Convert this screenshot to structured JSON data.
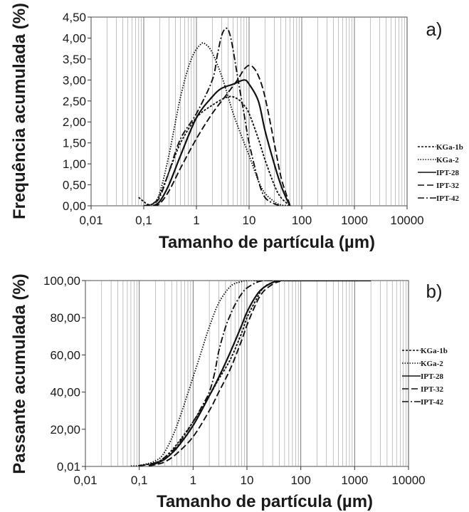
{
  "chart_data": [
    {
      "type": "line",
      "panel_label": "a)",
      "xlabel": "Tamanho de partícula (µm)",
      "ylabel": "Frequência acumulada (%)",
      "x_scale": "log",
      "xlim": [
        0.01,
        10000
      ],
      "ylim": [
        0,
        4.5
      ],
      "x_ticks": [
        "0,01",
        "0,1",
        "1",
        "10",
        "100",
        "1000",
        "10000"
      ],
      "y_ticks": [
        "0,00",
        "0,50",
        "1,00",
        "1,50",
        "2,00",
        "2,50",
        "3,00",
        "3,50",
        "4,00",
        "4,50"
      ],
      "grid": "log vertical grid",
      "legend_position": "right",
      "series": [
        {
          "name": "KGa-1b",
          "dash": "3,2",
          "x": [
            0.08,
            0.1,
            0.12,
            0.15,
            0.2,
            0.3,
            0.5,
            1,
            2,
            4,
            6,
            8,
            10,
            15,
            20,
            30,
            40,
            60
          ],
          "y": [
            0.2,
            0.1,
            0.03,
            0.05,
            0.25,
            0.8,
            1.5,
            2.1,
            2.4,
            2.6,
            2.55,
            2.4,
            2.2,
            1.6,
            1.1,
            0.5,
            0.2,
            0.0
          ]
        },
        {
          "name": "KGa-2",
          "dash": "1.5,2",
          "x": [
            0.1,
            0.15,
            0.2,
            0.3,
            0.5,
            0.8,
            1.2,
            1.5,
            2,
            3,
            4,
            5,
            7,
            10,
            15,
            20,
            30,
            40,
            60
          ],
          "y": [
            0.0,
            0.05,
            0.3,
            1.2,
            2.6,
            3.5,
            3.85,
            3.85,
            3.65,
            3.1,
            2.6,
            2.2,
            1.7,
            1.2,
            0.6,
            0.3,
            0.1,
            0.02,
            0.0
          ]
        },
        {
          "name": "IPT-28",
          "dash": "",
          "x": [
            0.15,
            0.2,
            0.3,
            0.5,
            1,
            2,
            3,
            5,
            8,
            10,
            15,
            20,
            30,
            40,
            50,
            60
          ],
          "y": [
            0.0,
            0.1,
            0.5,
            1.2,
            2.1,
            2.6,
            2.8,
            2.9,
            3.0,
            2.9,
            2.5,
            1.8,
            1.0,
            0.5,
            0.2,
            0.0
          ]
        },
        {
          "name": "IPT-32",
          "dash": "9,4",
          "x": [
            0.15,
            0.2,
            0.3,
            0.5,
            1,
            2,
            4,
            6,
            8,
            10,
            12,
            15,
            20,
            30,
            40,
            50,
            60
          ],
          "y": [
            0.0,
            0.05,
            0.35,
            0.9,
            1.6,
            2.2,
            2.7,
            3.0,
            3.25,
            3.35,
            3.3,
            3.1,
            2.6,
            1.5,
            0.7,
            0.3,
            0.0
          ]
        },
        {
          "name": "IPT-42",
          "dash": "9,3,2,3",
          "x": [
            0.1,
            0.15,
            0.2,
            0.3,
            0.5,
            1,
            2,
            2.5,
            3,
            3.5,
            4,
            4.5,
            5,
            6,
            8,
            10,
            15,
            20,
            30,
            40
          ],
          "y": [
            0.0,
            0.05,
            0.2,
            0.8,
            1.6,
            2.2,
            3.0,
            3.6,
            4.05,
            4.22,
            4.2,
            4.0,
            3.7,
            3.1,
            2.2,
            1.5,
            0.6,
            0.2,
            0.05,
            0.0
          ]
        }
      ]
    },
    {
      "type": "line",
      "panel_label": "b)",
      "xlabel": "Tamanho de partícula (µm)",
      "ylabel": "Passante acumulada (%)",
      "x_scale": "log",
      "xlim": [
        0.01,
        10000
      ],
      "ylim": [
        0.01,
        100
      ],
      "x_ticks": [
        "0,01",
        "0,1",
        "1",
        "10",
        "100",
        "1000",
        "10000"
      ],
      "y_ticks": [
        "0,01",
        "20,00",
        "40,00",
        "60,00",
        "80,00",
        "100,00"
      ],
      "grid": "log vertical grid",
      "legend_position": "right",
      "series": [
        {
          "name": "KGa-1b",
          "dash": "3,2",
          "x": [
            0.1,
            0.2,
            0.3,
            0.5,
            1,
            2,
            3,
            5,
            8,
            10,
            15,
            20,
            30,
            50,
            2000
          ],
          "y": [
            0.5,
            2,
            5,
            12,
            24,
            38,
            47,
            58,
            72,
            80,
            90,
            96,
            99,
            100,
            100
          ]
        },
        {
          "name": "KGa-2",
          "dash": "1.5,2",
          "x": [
            0.07,
            0.1,
            0.2,
            0.3,
            0.5,
            1,
            1.5,
            2,
            3,
            5,
            8,
            10,
            15,
            20,
            2000
          ],
          "y": [
            0.2,
            0.5,
            3,
            8,
            22,
            48,
            64,
            75,
            88,
            97,
            99.5,
            100,
            100,
            100,
            100
          ]
        },
        {
          "name": "IPT-28",
          "dash": "",
          "x": [
            0.15,
            0.2,
            0.3,
            0.5,
            1,
            2,
            3,
            5,
            8,
            10,
            15,
            20,
            30,
            40,
            60,
            2000
          ],
          "y": [
            0.5,
            1.5,
            4,
            10,
            22,
            38,
            48,
            62,
            76,
            83,
            92,
            96,
            99,
            100,
            100,
            100
          ]
        },
        {
          "name": "IPT-32",
          "dash": "9,4",
          "x": [
            0.15,
            0.2,
            0.3,
            0.5,
            1,
            2,
            3,
            5,
            8,
            10,
            15,
            20,
            30,
            40,
            60,
            2000
          ],
          "y": [
            0.3,
            1,
            2.5,
            7,
            16,
            30,
            40,
            53,
            68,
            76,
            88,
            94,
            98,
            99.5,
            100,
            100
          ]
        },
        {
          "name": "IPT-42",
          "dash": "9,3,2,3",
          "x": [
            0.1,
            0.2,
            0.3,
            0.5,
            1,
            1.5,
            2,
            2.5,
            3,
            4,
            5,
            6,
            8,
            10,
            15,
            20,
            30,
            2000
          ],
          "y": [
            0.3,
            2,
            5,
            11,
            24,
            33,
            40,
            50,
            62,
            75,
            82,
            87,
            93,
            96,
            99,
            100,
            100,
            100
          ]
        }
      ]
    }
  ]
}
